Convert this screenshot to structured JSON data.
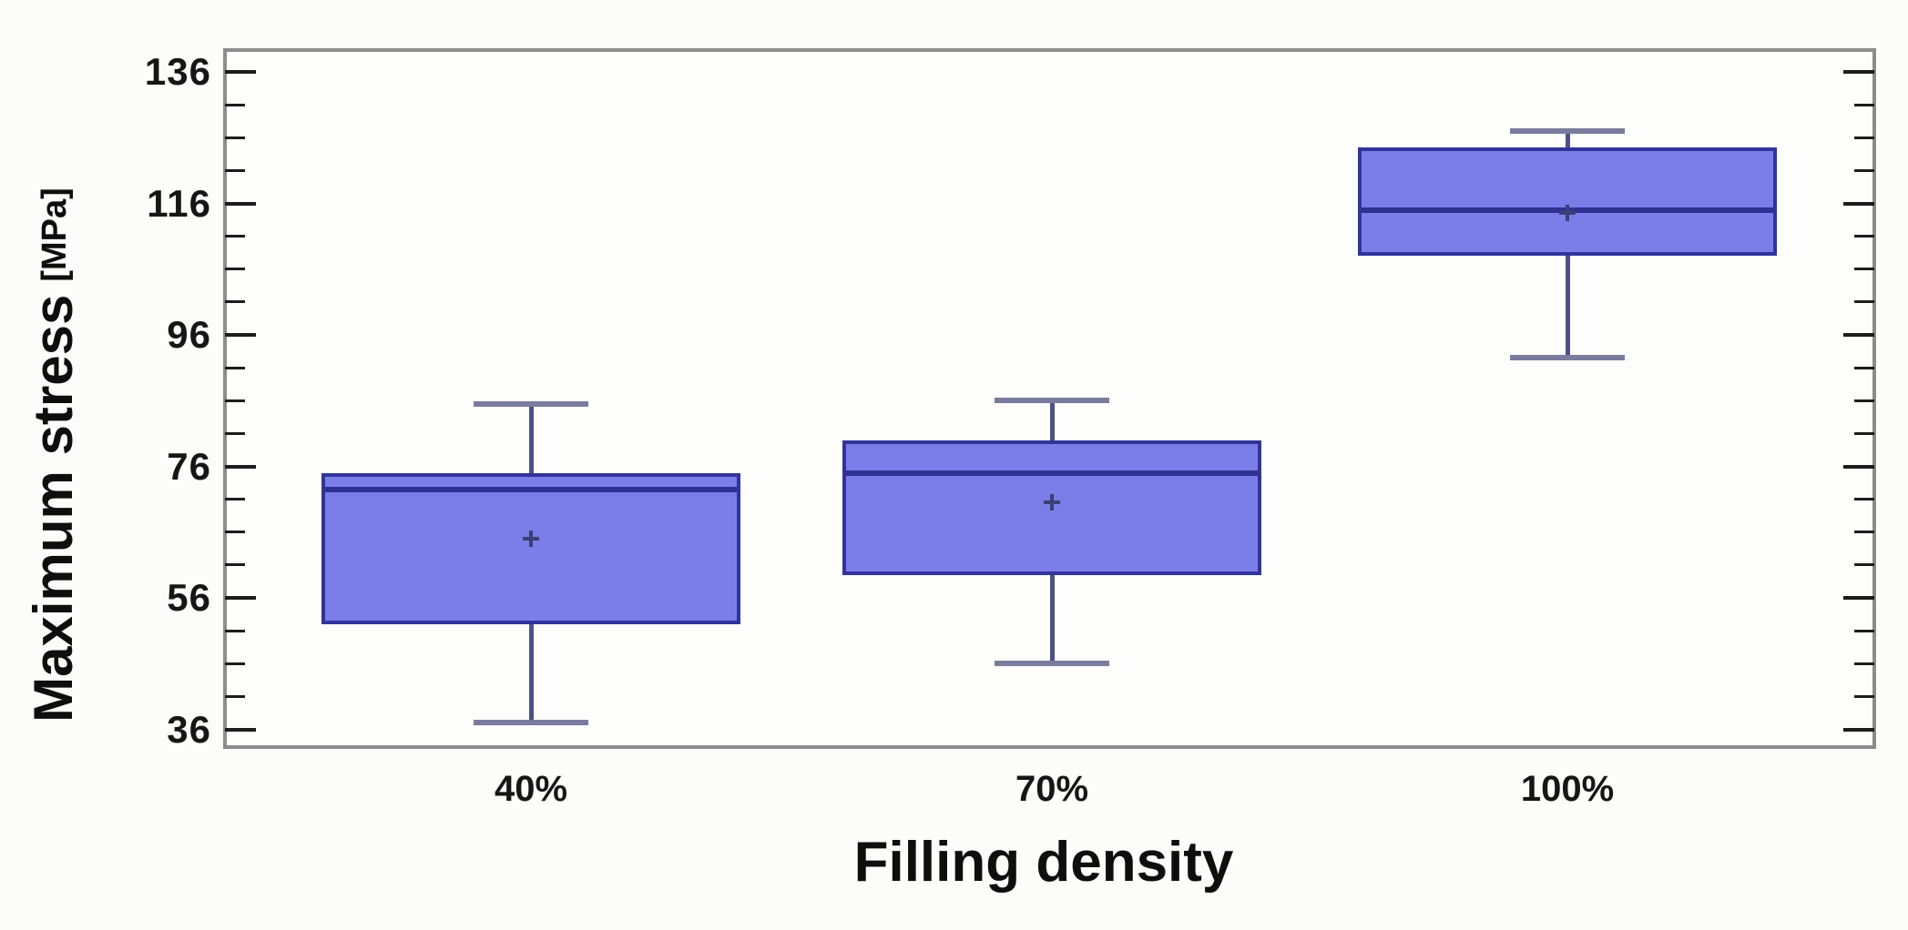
{
  "chart_data": {
    "type": "box",
    "title": "",
    "xlabel": "Filling density",
    "ylabel": "Maximum stress",
    "ylabel_unit": "[MPa]",
    "categories": [
      "40%",
      "70%",
      "100%"
    ],
    "series": [
      {
        "category": "40%",
        "whisker_low": 37,
        "q1": 52,
        "median": 72.5,
        "q3": 75,
        "whisker_high": 85.5,
        "mean": 65
      },
      {
        "category": "70%",
        "whisker_low": 46,
        "q1": 59.5,
        "median": 75,
        "q3": 80,
        "whisker_high": 86,
        "mean": 70.5
      },
      {
        "category": "100%",
        "whisker_low": 92.5,
        "q1": 108,
        "median": 115,
        "q3": 124.5,
        "whisker_high": 127,
        "mean": 114.5
      }
    ],
    "y_axis": {
      "unit": "MPa",
      "major_ticks": [
        136,
        116,
        96,
        76,
        56,
        36
      ],
      "minor_tick_step": 5,
      "ylim": [
        33,
        139
      ]
    },
    "grid": false,
    "legend": null,
    "colors": {
      "box_fill": "#7b7de8",
      "box_border": "#31349a",
      "median": "#2e3192",
      "whisker": "#4d5186",
      "whisker_cap": "#797c9c",
      "mean_marker": "#3c3f78",
      "frame": "#8c8c8c",
      "tick": "#1c1c1c",
      "text": "#161616",
      "background": "#fcfcfa"
    }
  }
}
